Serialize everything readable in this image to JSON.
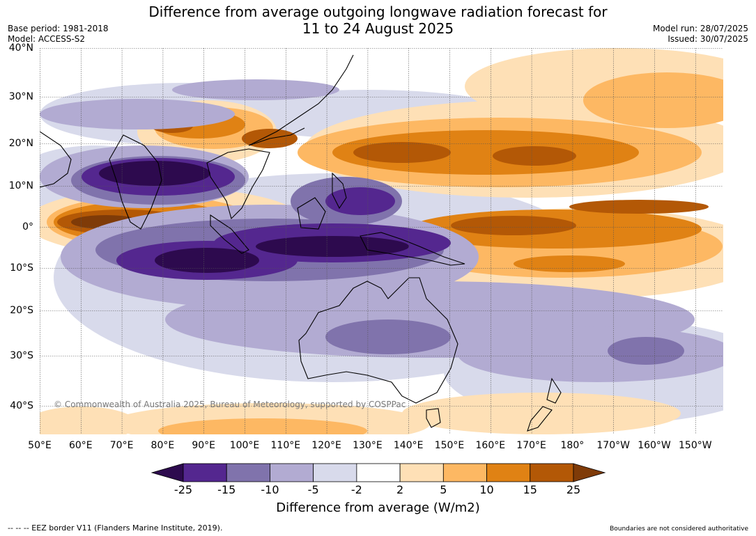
{
  "title_line1": "Difference from average outgoing longwave radiation forecast for",
  "title_line2": "11 to 24 August 2025",
  "base_period": "Base period: 1981-2018",
  "model": "Model: ACCESS-S2",
  "model_run": "Model run: 28/07/2025",
  "issued": "Issued: 30/07/2025",
  "lat_labels": [
    "40°N",
    "30°N",
    "20°N",
    "10°N",
    "0°",
    "10°S",
    "20°S",
    "30°S",
    "40°S"
  ],
  "lon_labels": [
    "50°E",
    "60°E",
    "70°E",
    "80°E",
    "90°E",
    "100°E",
    "110°E",
    "120°E",
    "130°E",
    "140°E",
    "150°E",
    "160°E",
    "170°E",
    "180°",
    "170°W",
    "160°W",
    "150°W"
  ],
  "copyright": "© Commonwealth of Australia 2025, Bureau of Meteorology, supported by COSPPac",
  "colorbar": {
    "ticks": [
      "-25",
      "-15",
      "-10",
      "-5",
      "-2",
      "2",
      "5",
      "10",
      "15",
      "25"
    ],
    "colors": [
      "#2d0a4e",
      "#54278f",
      "#8073ac",
      "#b2abd2",
      "#d8daeb",
      "#ffffff",
      "#fee0b6",
      "#fdb863",
      "#e08214",
      "#b35806",
      "#7f3b08"
    ],
    "label": "Difference from average (W/m2)"
  },
  "footer_left": "--  --  -- EEZ border V11 (Flanders Marine Institute, 2019).",
  "footer_right": "Boundaries are not considered authoritative"
}
